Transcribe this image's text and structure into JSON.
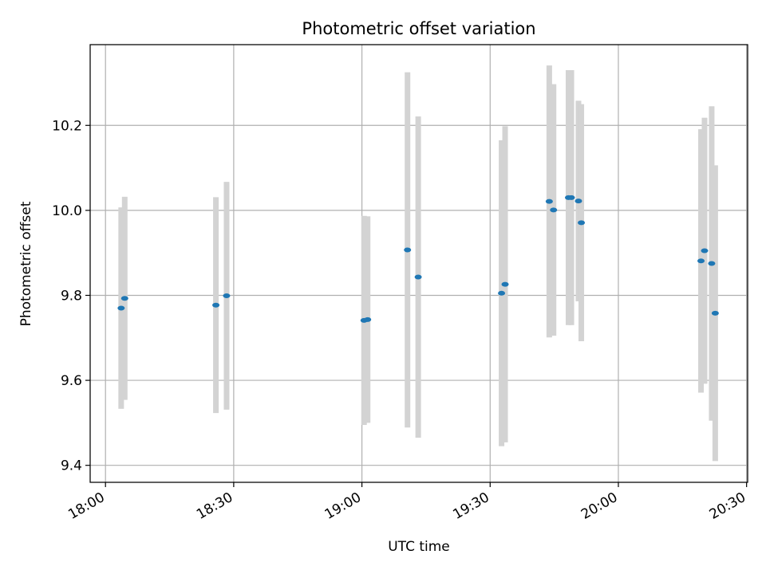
{
  "chart_data": {
    "type": "scatter",
    "title": "Photometric offset variation",
    "xlabel": "UTC time",
    "ylabel": "Photometric offset",
    "x_ticks": [
      "18:00",
      "18:30",
      "19:00",
      "19:30",
      "20:00",
      "20:30"
    ],
    "y_ticks": [
      "9.4",
      "9.6",
      "9.8",
      "10.0",
      "10.2"
    ],
    "xlim": [
      "17:56:25",
      "20:30:15"
    ],
    "ylim": [
      9.36,
      10.39
    ],
    "grid": true,
    "marker_color": "#1f77b4",
    "errorbar_color": "#d3d3d3",
    "series": [
      {
        "points": [
          {
            "x": "18:03:40",
            "y": 9.77,
            "err": 0.237
          },
          {
            "x": "18:04:30",
            "y": 9.793,
            "err": 0.239
          },
          {
            "x": "18:25:50",
            "y": 9.777,
            "err": 0.254
          },
          {
            "x": "18:28:20",
            "y": 9.799,
            "err": 0.268
          },
          {
            "x": "19:00:30",
            "y": 9.741,
            "err": 0.246
          },
          {
            "x": "19:01:20",
            "y": 9.743,
            "err": 0.243
          },
          {
            "x": "19:10:40",
            "y": 9.907,
            "err": 0.418
          },
          {
            "x": "19:13:10",
            "y": 9.843,
            "err": 0.378
          },
          {
            "x": "19:32:40",
            "y": 9.805,
            "err": 0.36
          },
          {
            "x": "19:33:30",
            "y": 9.826,
            "err": 0.372
          },
          {
            "x": "19:43:50",
            "y": 10.021,
            "err": 0.32
          },
          {
            "x": "19:44:50",
            "y": 10.001,
            "err": 0.296
          },
          {
            "x": "19:48:20",
            "y": 10.03,
            "err": 0.3
          },
          {
            "x": "19:49:00",
            "y": 10.03,
            "err": 0.3
          },
          {
            "x": "19:50:40",
            "y": 10.022,
            "err": 0.236
          },
          {
            "x": "19:51:20",
            "y": 9.971,
            "err": 0.279
          },
          {
            "x": "20:19:20",
            "y": 9.881,
            "err": 0.31
          },
          {
            "x": "20:20:10",
            "y": 9.905,
            "err": 0.313
          },
          {
            "x": "20:21:50",
            "y": 9.875,
            "err": 0.37
          },
          {
            "x": "20:22:40",
            "y": 9.758,
            "err": 0.348
          }
        ]
      }
    ]
  }
}
